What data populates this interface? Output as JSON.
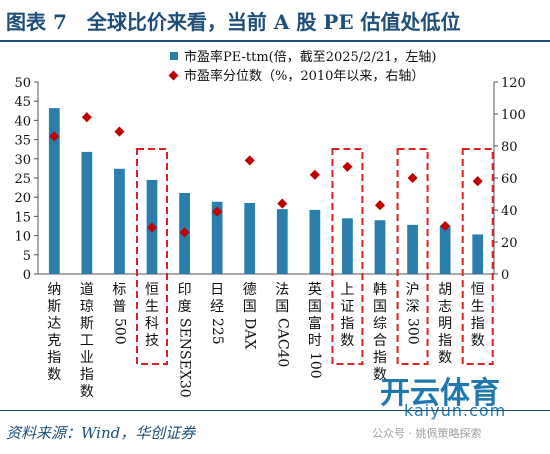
{
  "header": {
    "title": "图表 7　全球比价来看，当前 A 股 PE 估值处低位"
  },
  "footer": {
    "source": "资料来源：Wind，华创证券"
  },
  "watermark": {
    "brand": "开云体育",
    "url": "kaiyun.com",
    "account": "公众号 · 姚佩策略探索"
  },
  "colors": {
    "bar": "#2b7dab",
    "marker": "#c00000",
    "highlight": "#e02020",
    "title": "#1f4e79"
  },
  "chart_data": {
    "type": "bar",
    "categories": [
      "纳斯达克指数",
      "道琼斯工业指数",
      "标普500",
      "恒生科技",
      "印度SENSEX30",
      "日经225",
      "德国DAX",
      "法国CAC40",
      "英国富时100",
      "上证指数",
      "韩国综合指数",
      "沪深300",
      "胡志明指数",
      "恒生指数"
    ],
    "series": [
      {
        "name": "市盈率PE-ttm(倍，截至2025/2/21，左轴)",
        "type": "bar",
        "axis": "left",
        "values": [
          43.2,
          31.8,
          27.4,
          24.5,
          21.1,
          18.8,
          18.5,
          16.9,
          16.7,
          14.5,
          14.0,
          12.8,
          12.6,
          10.3
        ]
      },
      {
        "name": "市盈率分位数（%，2010年以来，右轴）",
        "type": "scatter",
        "axis": "right",
        "values": [
          86,
          98,
          89,
          29,
          26,
          39,
          71,
          44,
          62,
          67,
          43,
          60,
          30,
          58
        ]
      }
    ],
    "y_left": {
      "min": 0,
      "max": 50,
      "ticks": [
        "0",
        "5",
        "10",
        "15",
        "20",
        "25",
        "30",
        "35",
        "40",
        "45",
        "50"
      ]
    },
    "y_right": {
      "min": 0,
      "max": 120,
      "ticks": [
        "0",
        "20",
        "40",
        "60",
        "80",
        "100",
        "120"
      ]
    },
    "highlighted_categories": [
      "恒生科技",
      "上证指数",
      "沪深300",
      "恒生指数"
    ],
    "grid": false,
    "legend": "top"
  }
}
